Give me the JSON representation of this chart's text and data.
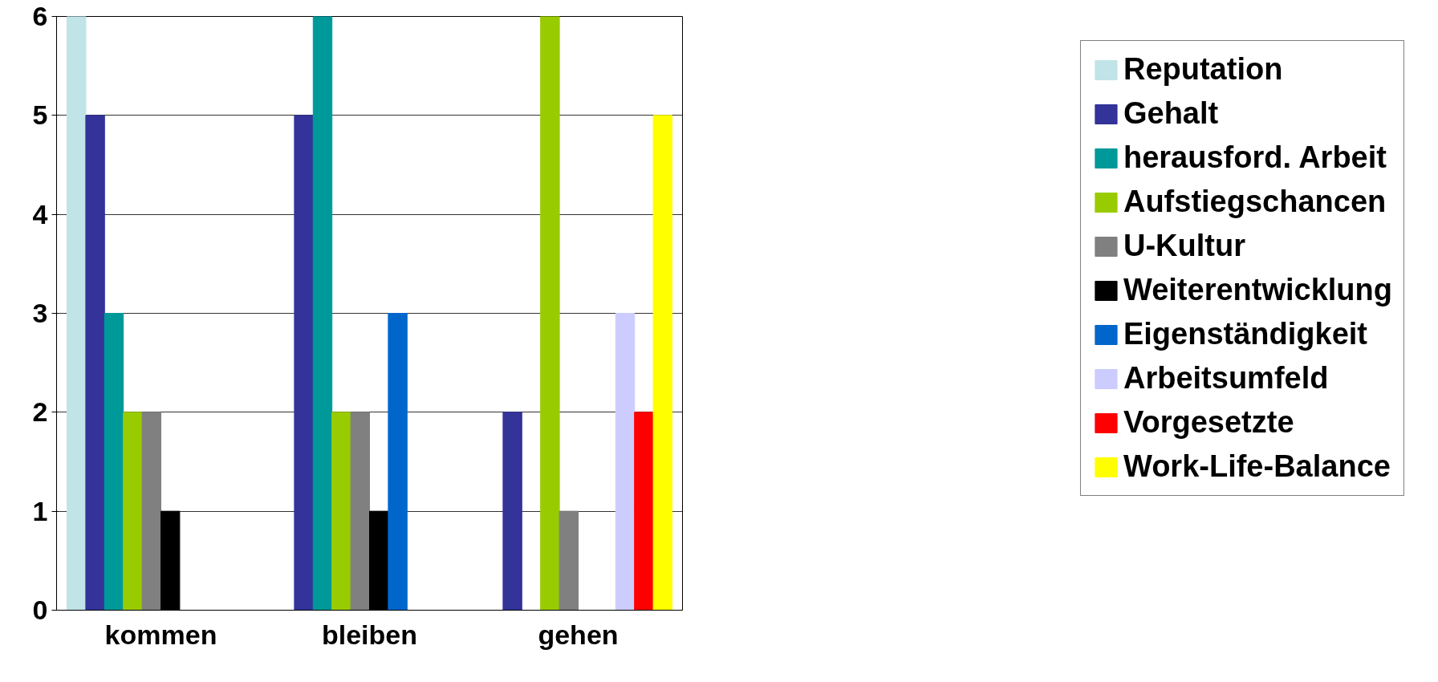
{
  "chart_data": {
    "type": "bar",
    "categories": [
      "kommen",
      "bleiben",
      "gehen"
    ],
    "ylim": [
      0,
      6
    ],
    "yticks": [
      0,
      1,
      2,
      3,
      4,
      5,
      6
    ],
    "grid": "y",
    "legend": "right",
    "series": [
      {
        "name": "Reputation",
        "color": "#c0e4e8",
        "values": [
          6,
          0,
          0
        ]
      },
      {
        "name": "Gehalt",
        "color": "#333399",
        "values": [
          5,
          5,
          2
        ]
      },
      {
        "name": "herausford. Arbeit",
        "color": "#009999",
        "values": [
          3,
          6,
          0
        ]
      },
      {
        "name": "Aufstiegschancen",
        "color": "#99cc00",
        "values": [
          2,
          2,
          6
        ]
      },
      {
        "name": "U-Kultur",
        "color": "#808080",
        "values": [
          2,
          2,
          1
        ]
      },
      {
        "name": "Weiterentwicklung",
        "color": "#000000",
        "values": [
          1,
          1,
          0
        ]
      },
      {
        "name": "Eigenständigkeit",
        "color": "#0066cc",
        "values": [
          0,
          3,
          0
        ]
      },
      {
        "name": "Arbeitsumfeld",
        "color": "#ccccff",
        "values": [
          0,
          0,
          3
        ]
      },
      {
        "name": "Vorgesetzte",
        "color": "#ff0000",
        "values": [
          0,
          0,
          2
        ]
      },
      {
        "name": "Work-Life-Balance",
        "color": "#ffff00",
        "values": [
          0,
          0,
          5
        ]
      }
    ]
  }
}
